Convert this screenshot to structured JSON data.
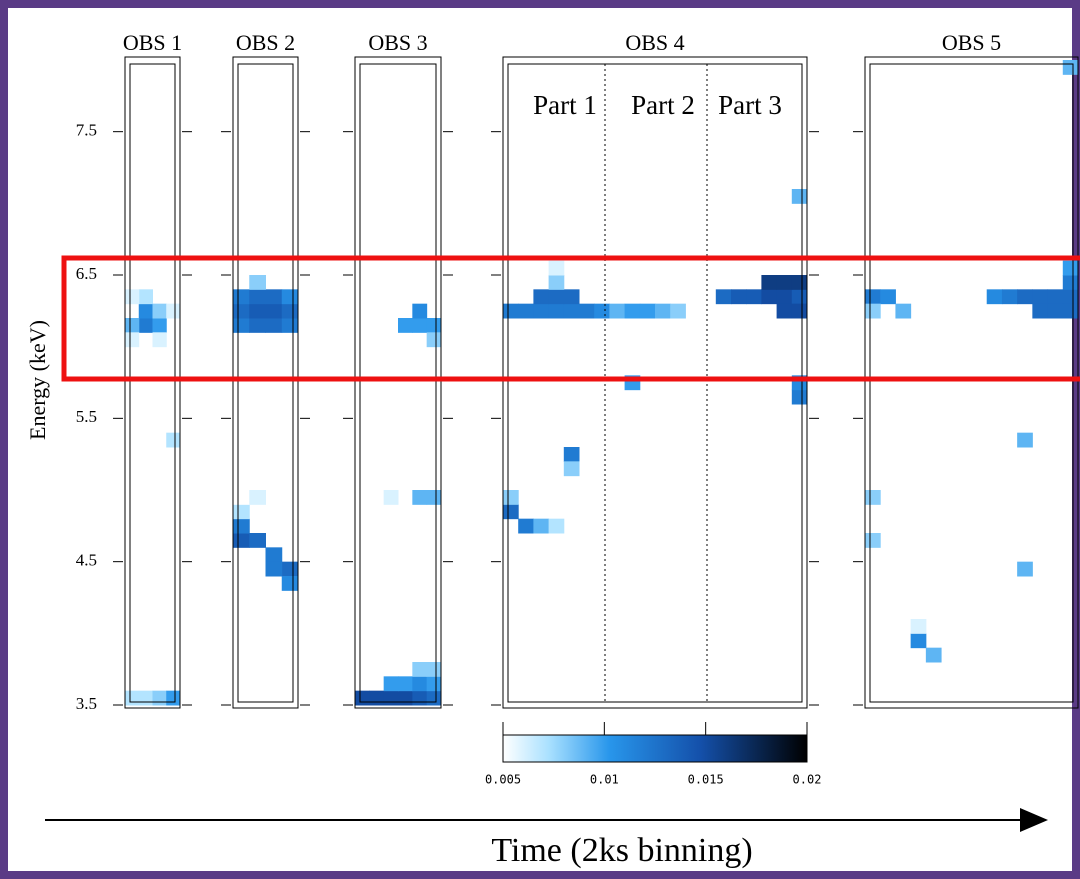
{
  "chart_data": {
    "type": "heatmap",
    "ylabel": "Energy (keV)",
    "xlabel": "Time (2ks binning)",
    "ylim": [
      3.5,
      8.0
    ],
    "yticks": [
      3.5,
      4.5,
      5.5,
      6.5,
      7.5
    ],
    "clim": [
      0.005,
      0.02
    ],
    "cticks": [
      0.005,
      0.01,
      0.015,
      0.02
    ],
    "annotations": [
      "Part 1",
      "Part 2",
      "Part 3"
    ],
    "panels": [
      {
        "name": "OBS 1",
        "cells": [
          {
            "t": 1,
            "e": 6.1,
            "v": 0.012
          },
          {
            "t": 1,
            "e": 6.2,
            "v": 0.011
          },
          {
            "t": 0,
            "e": 6.1,
            "v": 0.009
          },
          {
            "t": 2,
            "e": 6.1,
            "v": 0.01
          },
          {
            "t": 1,
            "e": 6.3,
            "v": 0.007
          },
          {
            "t": 0,
            "e": 6.3,
            "v": 0.006
          },
          {
            "t": 2,
            "e": 6.2,
            "v": 0.008
          },
          {
            "t": 3,
            "e": 6.2,
            "v": 0.006
          },
          {
            "t": 0,
            "e": 6.0,
            "v": 0.006
          },
          {
            "t": 2,
            "e": 6.0,
            "v": 0.006
          },
          {
            "t": 0,
            "e": 3.5,
            "v": 0.007
          },
          {
            "t": 1,
            "e": 3.5,
            "v": 0.007
          },
          {
            "t": 2,
            "e": 3.5,
            "v": 0.008
          },
          {
            "t": 3,
            "e": 3.5,
            "v": 0.01
          },
          {
            "t": 0,
            "e": 7.1,
            "v": 0.005
          },
          {
            "t": 3,
            "e": 5.3,
            "v": 0.007
          }
        ]
      },
      {
        "name": "OBS 2",
        "cells": [
          {
            "t": 0,
            "e": 6.1,
            "v": 0.012
          },
          {
            "t": 1,
            "e": 6.1,
            "v": 0.013
          },
          {
            "t": 2,
            "e": 6.1,
            "v": 0.013
          },
          {
            "t": 3,
            "e": 6.1,
            "v": 0.012
          },
          {
            "t": 0,
            "e": 6.2,
            "v": 0.013
          },
          {
            "t": 1,
            "e": 6.2,
            "v": 0.014
          },
          {
            "t": 2,
            "e": 6.2,
            "v": 0.014
          },
          {
            "t": 3,
            "e": 6.2,
            "v": 0.013
          },
          {
            "t": 0,
            "e": 6.3,
            "v": 0.012
          },
          {
            "t": 1,
            "e": 6.3,
            "v": 0.013
          },
          {
            "t": 2,
            "e": 6.3,
            "v": 0.013
          },
          {
            "t": 3,
            "e": 6.3,
            "v": 0.011
          },
          {
            "t": 1,
            "e": 6.4,
            "v": 0.008
          },
          {
            "t": 0,
            "e": 4.6,
            "v": 0.014
          },
          {
            "t": 0,
            "e": 4.7,
            "v": 0.012
          },
          {
            "t": 1,
            "e": 4.6,
            "v": 0.013
          },
          {
            "t": 2,
            "e": 4.5,
            "v": 0.012
          },
          {
            "t": 3,
            "e": 4.4,
            "v": 0.013
          },
          {
            "t": 3,
            "e": 4.3,
            "v": 0.011
          },
          {
            "t": 2,
            "e": 4.4,
            "v": 0.012
          },
          {
            "t": 0,
            "e": 4.8,
            "v": 0.007
          },
          {
            "t": 0,
            "e": 4.9,
            "v": 0.005
          },
          {
            "t": 0,
            "e": 5.0,
            "v": 0.005
          },
          {
            "t": 1,
            "e": 4.9,
            "v": 0.006
          }
        ]
      },
      {
        "name": "OBS 3",
        "cells": [
          {
            "t": 3,
            "e": 6.1,
            "v": 0.01
          },
          {
            "t": 4,
            "e": 6.1,
            "v": 0.01
          },
          {
            "t": 5,
            "e": 6.1,
            "v": 0.01
          },
          {
            "t": 4,
            "e": 6.2,
            "v": 0.011
          },
          {
            "t": 5,
            "e": 6.0,
            "v": 0.008
          },
          {
            "t": 4,
            "e": 4.9,
            "v": 0.009
          },
          {
            "t": 5,
            "e": 4.9,
            "v": 0.009
          },
          {
            "t": 2,
            "e": 4.9,
            "v": 0.006
          },
          {
            "t": 0,
            "e": 3.5,
            "v": 0.015
          },
          {
            "t": 1,
            "e": 3.5,
            "v": 0.015
          },
          {
            "t": 2,
            "e": 3.5,
            "v": 0.015
          },
          {
            "t": 3,
            "e": 3.5,
            "v": 0.015
          },
          {
            "t": 4,
            "e": 3.5,
            "v": 0.014
          },
          {
            "t": 5,
            "e": 3.5,
            "v": 0.013
          },
          {
            "t": 2,
            "e": 3.6,
            "v": 0.01
          },
          {
            "t": 3,
            "e": 3.6,
            "v": 0.01
          },
          {
            "t": 4,
            "e": 3.6,
            "v": 0.011
          },
          {
            "t": 5,
            "e": 3.6,
            "v": 0.01
          },
          {
            "t": 4,
            "e": 3.7,
            "v": 0.008
          },
          {
            "t": 5,
            "e": 3.7,
            "v": 0.008
          }
        ]
      },
      {
        "name": "OBS 4",
        "cells": [
          {
            "t": 0,
            "e": 6.2,
            "v": 0.012
          },
          {
            "t": 1,
            "e": 6.2,
            "v": 0.012
          },
          {
            "t": 2,
            "e": 6.2,
            "v": 0.012
          },
          {
            "t": 3,
            "e": 6.2,
            "v": 0.012
          },
          {
            "t": 4,
            "e": 6.2,
            "v": 0.012
          },
          {
            "t": 5,
            "e": 6.2,
            "v": 0.012
          },
          {
            "t": 6,
            "e": 6.2,
            "v": 0.011
          },
          {
            "t": 2,
            "e": 6.3,
            "v": 0.013
          },
          {
            "t": 3,
            "e": 6.3,
            "v": 0.013
          },
          {
            "t": 4,
            "e": 6.3,
            "v": 0.013
          },
          {
            "t": 3,
            "e": 6.4,
            "v": 0.008
          },
          {
            "t": 3,
            "e": 6.5,
            "v": 0.006
          },
          {
            "t": 7,
            "e": 6.2,
            "v": 0.009
          },
          {
            "t": 8,
            "e": 6.2,
            "v": 0.01
          },
          {
            "t": 9,
            "e": 6.2,
            "v": 0.01
          },
          {
            "t": 10,
            "e": 6.2,
            "v": 0.009
          },
          {
            "t": 11,
            "e": 6.2,
            "v": 0.008
          },
          {
            "t": 14,
            "e": 6.3,
            "v": 0.013
          },
          {
            "t": 15,
            "e": 6.3,
            "v": 0.014
          },
          {
            "t": 16,
            "e": 6.3,
            "v": 0.014
          },
          {
            "t": 17,
            "e": 6.3,
            "v": 0.015
          },
          {
            "t": 18,
            "e": 6.3,
            "v": 0.015
          },
          {
            "t": 19,
            "e": 6.3,
            "v": 0.014
          },
          {
            "t": 17,
            "e": 6.4,
            "v": 0.016
          },
          {
            "t": 18,
            "e": 6.4,
            "v": 0.016
          },
          {
            "t": 19,
            "e": 6.4,
            "v": 0.016
          },
          {
            "t": 18,
            "e": 6.2,
            "v": 0.015
          },
          {
            "t": 19,
            "e": 6.2,
            "v": 0.015
          },
          {
            "t": 19,
            "e": 5.6,
            "v": 0.012
          },
          {
            "t": 19,
            "e": 5.7,
            "v": 0.011
          },
          {
            "t": 19,
            "e": 7.0,
            "v": 0.009
          },
          {
            "t": 0,
            "e": 4.8,
            "v": 0.013
          },
          {
            "t": 1,
            "e": 4.7,
            "v": 0.012
          },
          {
            "t": 2,
            "e": 4.7,
            "v": 0.009
          },
          {
            "t": 3,
            "e": 4.7,
            "v": 0.007
          },
          {
            "t": 0,
            "e": 4.9,
            "v": 0.008
          },
          {
            "t": 4,
            "e": 5.2,
            "v": 0.012
          },
          {
            "t": 4,
            "e": 5.1,
            "v": 0.008
          },
          {
            "t": 8,
            "e": 5.7,
            "v": 0.01
          },
          {
            "t": 6,
            "e": 5.4,
            "v": 0.005
          },
          {
            "t": 7,
            "e": 5.4,
            "v": 0.005
          },
          {
            "t": 8,
            "e": 5.4,
            "v": 0.005
          },
          {
            "t": 9,
            "e": 5.4,
            "v": 0.005
          },
          {
            "t": 10,
            "e": 5.4,
            "v": 0.005
          }
        ]
      },
      {
        "name": "OBS 5",
        "cells": [
          {
            "t": 0,
            "e": 6.3,
            "v": 0.012
          },
          {
            "t": 1,
            "e": 6.3,
            "v": 0.011
          },
          {
            "t": 2,
            "e": 6.2,
            "v": 0.009
          },
          {
            "t": 0,
            "e": 6.2,
            "v": 0.008
          },
          {
            "t": 8,
            "e": 6.3,
            "v": 0.011
          },
          {
            "t": 9,
            "e": 6.3,
            "v": 0.012
          },
          {
            "t": 10,
            "e": 6.3,
            "v": 0.013
          },
          {
            "t": 11,
            "e": 6.3,
            "v": 0.013
          },
          {
            "t": 12,
            "e": 6.3,
            "v": 0.013
          },
          {
            "t": 13,
            "e": 6.3,
            "v": 0.013
          },
          {
            "t": 11,
            "e": 6.2,
            "v": 0.013
          },
          {
            "t": 12,
            "e": 6.2,
            "v": 0.013
          },
          {
            "t": 13,
            "e": 6.2,
            "v": 0.013
          },
          {
            "t": 13,
            "e": 6.4,
            "v": 0.012
          },
          {
            "t": 13,
            "e": 6.5,
            "v": 0.01
          },
          {
            "t": 10,
            "e": 5.3,
            "v": 0.009
          },
          {
            "t": 0,
            "e": 4.9,
            "v": 0.008
          },
          {
            "t": 0,
            "e": 4.6,
            "v": 0.008
          },
          {
            "t": 3,
            "e": 3.9,
            "v": 0.011
          },
          {
            "t": 4,
            "e": 3.8,
            "v": 0.009
          },
          {
            "t": 3,
            "e": 4.0,
            "v": 0.006
          },
          {
            "t": 10,
            "e": 4.4,
            "v": 0.009
          },
          {
            "t": 13,
            "e": 7.9,
            "v": 0.009
          }
        ]
      }
    ]
  }
}
